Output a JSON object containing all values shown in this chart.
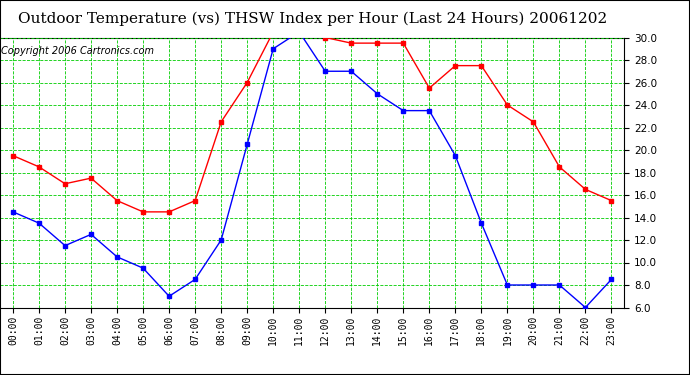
{
  "title": "Outdoor Temperature (vs) THSW Index per Hour (Last 24 Hours) 20061202",
  "copyright": "Copyright 2006 Cartronics.com",
  "hours": [
    "00:00",
    "01:00",
    "02:00",
    "03:00",
    "04:00",
    "05:00",
    "06:00",
    "07:00",
    "08:00",
    "09:00",
    "10:00",
    "11:00",
    "12:00",
    "13:00",
    "14:00",
    "15:00",
    "16:00",
    "17:00",
    "18:00",
    "19:00",
    "20:00",
    "21:00",
    "22:00",
    "23:00"
  ],
  "temp_red": [
    19.5,
    18.5,
    17.0,
    17.5,
    15.5,
    14.5,
    14.5,
    15.5,
    22.5,
    26.0,
    30.5,
    30.5,
    30.0,
    29.5,
    29.5,
    29.5,
    25.5,
    27.5,
    27.5,
    24.0,
    22.5,
    18.5,
    16.5,
    15.5
  ],
  "thsw_blue": [
    14.5,
    13.5,
    11.5,
    12.5,
    10.5,
    9.5,
    7.0,
    8.5,
    12.0,
    20.5,
    29.0,
    30.5,
    27.0,
    27.0,
    25.0,
    23.5,
    23.5,
    19.5,
    13.5,
    8.0,
    8.0,
    8.0,
    6.0,
    8.5
  ],
  "ylim_min": 6.0,
  "ylim_max": 30.0,
  "yticks": [
    6.0,
    8.0,
    10.0,
    12.0,
    14.0,
    16.0,
    18.0,
    20.0,
    22.0,
    24.0,
    26.0,
    28.0,
    30.0
  ],
  "bg_color": "#ffffff",
  "plot_bg": "#ffffff",
  "grid_color": "#00cc00",
  "red_color": "#ff0000",
  "blue_color": "#0000ff",
  "border_color": "#000000",
  "title_fontsize": 11,
  "copyright_fontsize": 7
}
